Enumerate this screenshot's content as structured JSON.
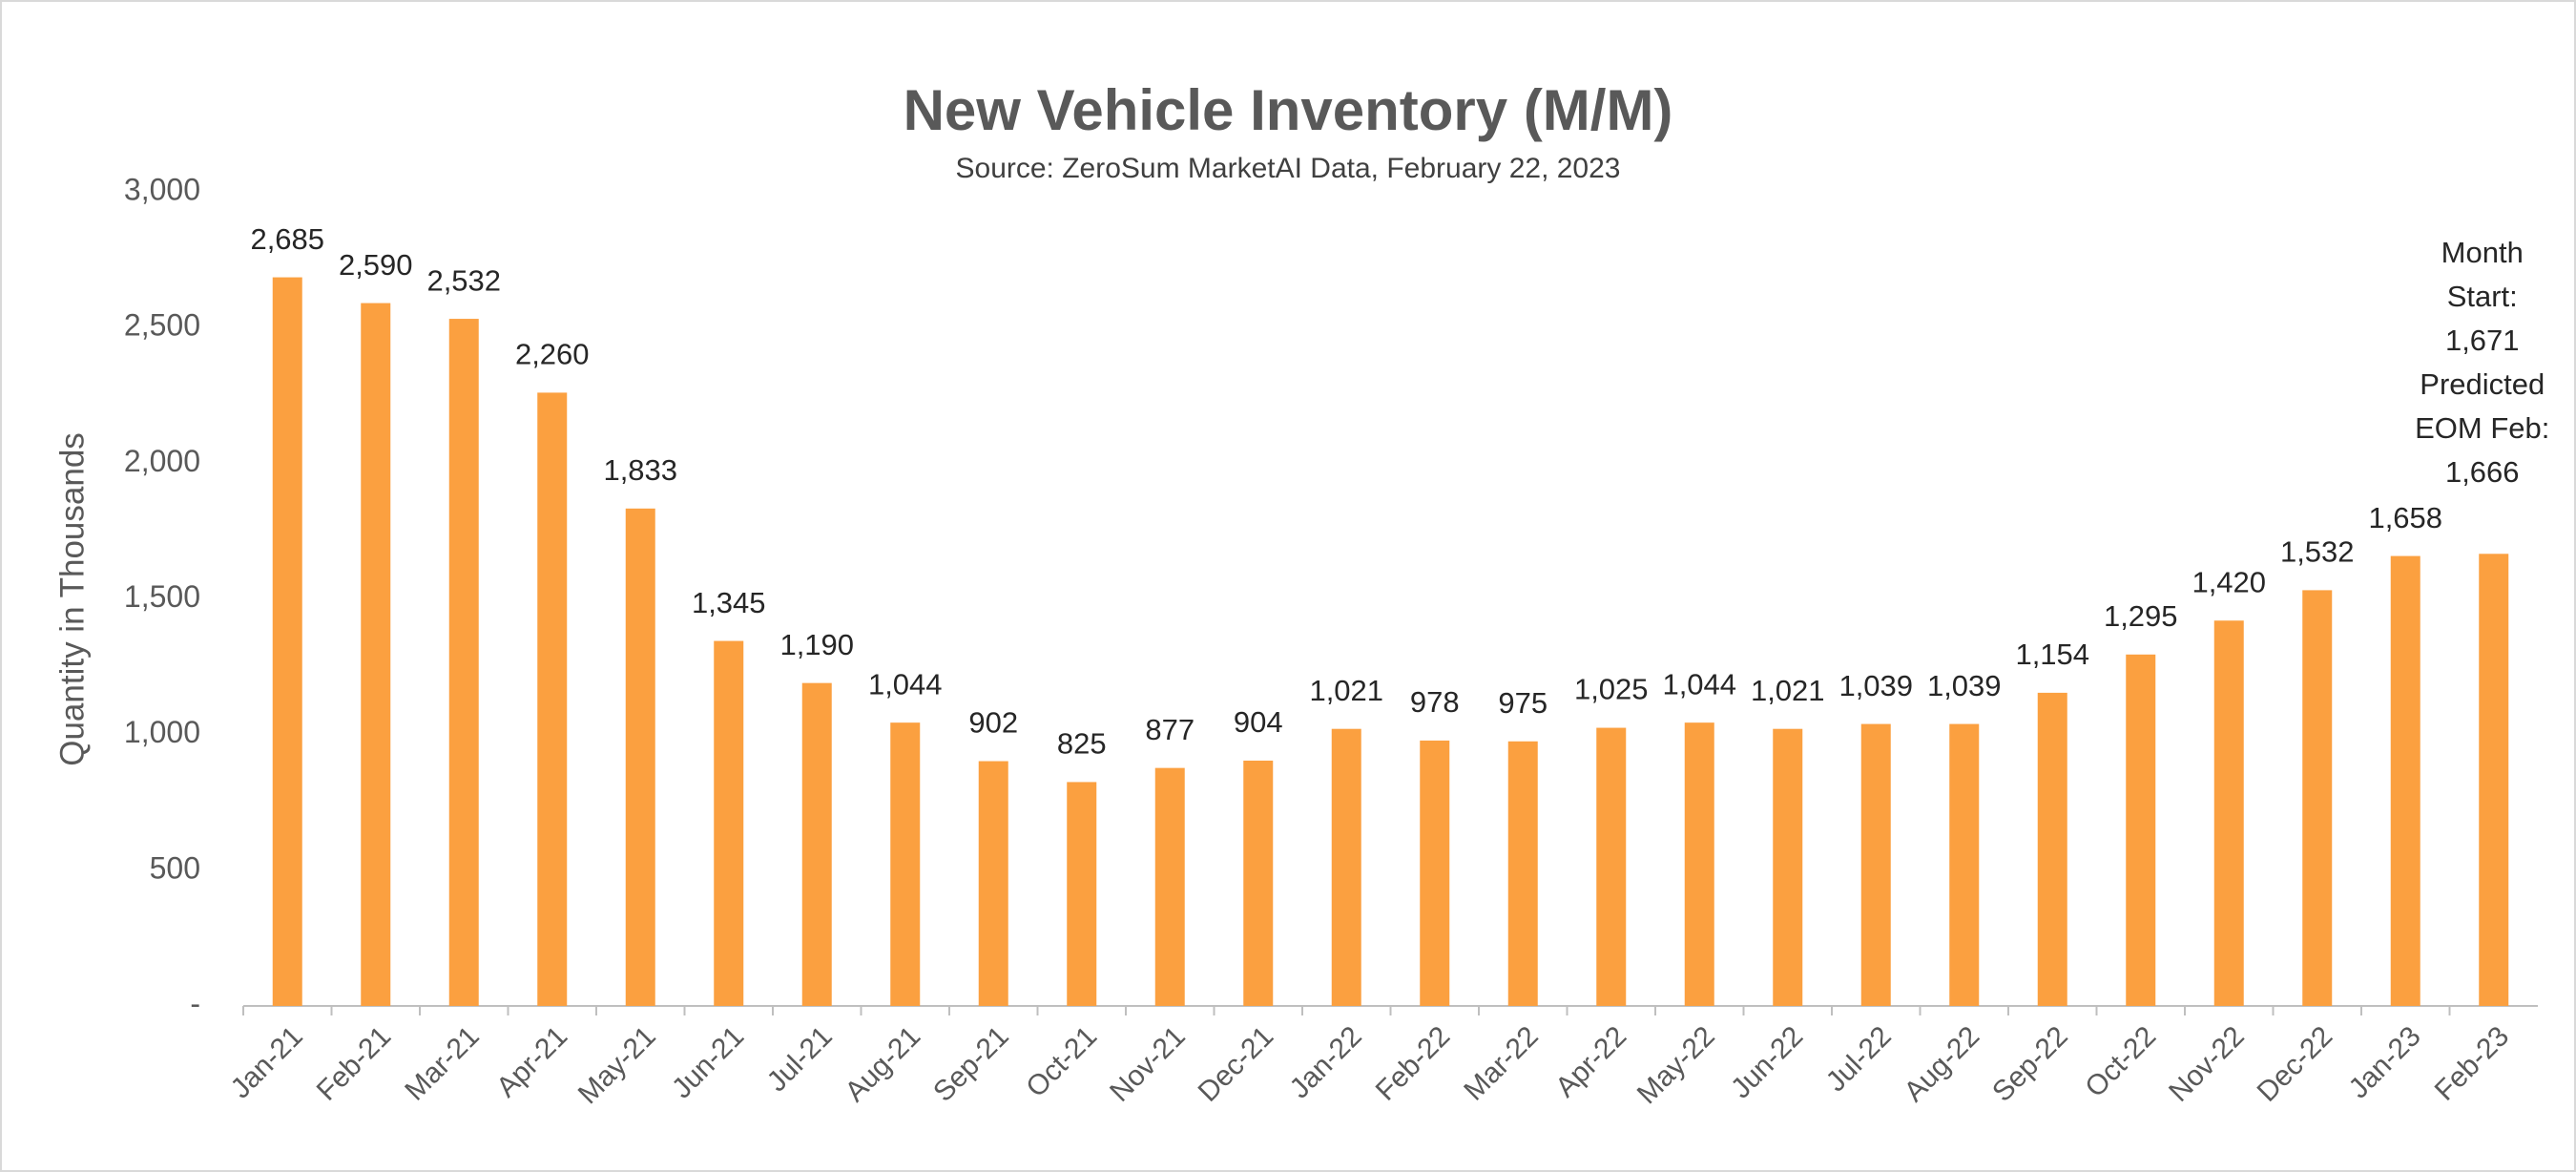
{
  "chart_data": {
    "type": "bar",
    "title": "New Vehicle Inventory (M/M)",
    "subtitle": "Source: ZeroSum MarketAI Data, February 22, 2023",
    "y_axis_label": "Quantity in Thousands",
    "categories": [
      "Jan-21",
      "Feb-21",
      "Mar-21",
      "Apr-21",
      "May-21",
      "Jun-21",
      "Jul-21",
      "Aug-21",
      "Sep-21",
      "Oct-21",
      "Nov-21",
      "Dec-21",
      "Jan-22",
      "Feb-22",
      "Mar-22",
      "Apr-22",
      "May-22",
      "Jun-22",
      "Jul-22",
      "Aug-22",
      "Sep-22",
      "Oct-22",
      "Nov-22",
      "Dec-22",
      "Jan-23",
      "Feb-23"
    ],
    "values": [
      2685,
      2590,
      2532,
      2260,
      1833,
      1345,
      1190,
      1044,
      902,
      825,
      877,
      904,
      1021,
      978,
      975,
      1025,
      1044,
      1021,
      1039,
      1039,
      1154,
      1295,
      1420,
      1532,
      1658,
      1666
    ],
    "value_labels": [
      "2,685",
      "2,590",
      "2,532",
      "2,260",
      "1,833",
      "1,345",
      "1,190",
      "1,044",
      "902",
      "825",
      "877",
      "904",
      "1,021",
      "978",
      "975",
      "1,025",
      "1,044",
      "1,021",
      "1,039",
      "1,039",
      "1,154",
      "1,295",
      "1,420",
      "1,532",
      "1,658",
      null
    ],
    "annotation": [
      "Month",
      "Start:",
      "1,671",
      "Predicted",
      "EOM Feb:",
      "1,666"
    ],
    "color": "#fba040",
    "ylim": [
      0,
      3000
    ],
    "yticks": [
      {
        "value": 0,
        "label": "-"
      },
      500,
      {
        "value": 1000,
        "label": "1,000"
      },
      {
        "value": 1500,
        "label": "1,500"
      },
      {
        "value": 2000,
        "label": "2,000"
      },
      {
        "value": 2500,
        "label": "2,500"
      },
      {
        "value": 3000,
        "label": "3,000"
      }
    ],
    "grid": false
  }
}
